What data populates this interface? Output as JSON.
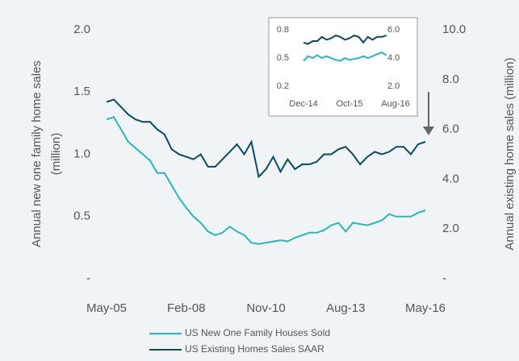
{
  "chart_data": [
    {
      "type": "line",
      "ylabel": [
        "Annual new one family home sales",
        "(million)"
      ],
      "y2label": "Annual existing home sales (million)",
      "categories": [
        "May-05",
        null,
        null,
        null,
        null,
        null,
        null,
        null,
        null,
        null,
        null,
        "Feb-08",
        null,
        null,
        null,
        null,
        null,
        null,
        null,
        null,
        null,
        null,
        "Nov-10",
        null,
        null,
        null,
        null,
        null,
        null,
        null,
        null,
        null,
        null,
        "Aug-13",
        null,
        null,
        null,
        null,
        null,
        null,
        null,
        null,
        null,
        null,
        "May-16"
      ],
      "series": [
        {
          "name": "US New One Family Houses Sold",
          "color": "#2bb5b8",
          "axis": "y",
          "values": [
            1.28,
            1.3,
            1.2,
            1.1,
            1.05,
            1.0,
            0.95,
            0.85,
            0.85,
            0.75,
            0.65,
            0.57,
            0.5,
            0.45,
            0.38,
            0.35,
            0.37,
            0.42,
            0.38,
            0.35,
            0.29,
            0.28,
            0.29,
            0.3,
            0.31,
            0.3,
            0.33,
            0.35,
            0.37,
            0.37,
            0.39,
            0.43,
            0.45,
            0.38,
            0.45,
            0.44,
            0.43,
            0.45,
            0.47,
            0.52,
            0.5,
            0.5,
            0.5,
            0.53,
            0.55
          ]
        },
        {
          "name": "US Existing Homes Sales SAAR",
          "color": "#0d4a5e",
          "axis": "y2",
          "values": [
            7.1,
            7.2,
            6.9,
            6.6,
            6.4,
            6.3,
            6.3,
            6.0,
            5.8,
            5.2,
            5.0,
            4.9,
            4.8,
            5.0,
            4.5,
            4.5,
            4.8,
            5.1,
            5.4,
            5.0,
            5.5,
            4.1,
            4.4,
            4.9,
            4.3,
            4.8,
            4.4,
            4.6,
            4.6,
            4.7,
            5.0,
            5.0,
            5.2,
            5.3,
            5.0,
            4.6,
            4.9,
            5.1,
            5.0,
            5.1,
            5.3,
            5.3,
            5.0,
            5.4,
            5.5
          ]
        }
      ],
      "ylim": [
        0,
        2
      ],
      "yticks": [
        {
          "value": 0,
          "label": "-"
        },
        0.5,
        {
          "value": 1,
          "label": "1.0"
        },
        1.5,
        {
          "value": 2,
          "label": "2.0"
        }
      ],
      "y2lim": [
        0,
        10
      ],
      "y2ticks": [
        {
          "value": 0,
          "label": "-"
        },
        {
          "value": 2,
          "label": "2.0"
        },
        {
          "value": 4,
          "label": "4.0"
        },
        {
          "value": 6,
          "label": "6.0"
        },
        {
          "value": 8,
          "label": "8.0"
        },
        {
          "value": 10,
          "label": "10.0"
        }
      ],
      "legend": "bottom"
    },
    {
      "type": "line",
      "categories": [
        "Dec-14",
        null,
        null,
        null,
        null,
        null,
        null,
        null,
        null,
        null,
        "Oct-15",
        null,
        null,
        null,
        null,
        null,
        null,
        null,
        null,
        null,
        "Aug-16"
      ],
      "series": [
        {
          "name": "US New One Family Houses Sold",
          "color": "#2bb5b8",
          "axis": "y",
          "values": [
            0.47,
            0.52,
            0.5,
            0.53,
            0.5,
            0.52,
            0.5,
            0.48,
            0.47,
            0.5,
            0.48,
            0.49,
            0.5,
            0.52,
            0.5,
            0.52,
            0.54,
            0.56,
            0.53,
            null,
            null
          ]
        },
        {
          "name": "US Existing Homes Sales SAAR",
          "color": "#0d4a5e",
          "axis": "y2",
          "values": [
            5.1,
            5.0,
            5.2,
            5.2,
            5.5,
            5.3,
            5.4,
            5.6,
            5.5,
            5.3,
            5.4,
            5.6,
            5.5,
            5.1,
            5.5,
            5.3,
            5.5,
            5.5,
            5.6,
            null,
            null
          ]
        }
      ],
      "ylim": [
        0.2,
        0.8
      ],
      "yticks": [
        0.2,
        0.5,
        0.8
      ],
      "y2lim": [
        2,
        6
      ],
      "y2ticks": [
        {
          "value": 2,
          "label": "2.0"
        },
        {
          "value": 4,
          "label": "4.0"
        },
        {
          "value": 6,
          "label": "6.0"
        }
      ]
    }
  ]
}
